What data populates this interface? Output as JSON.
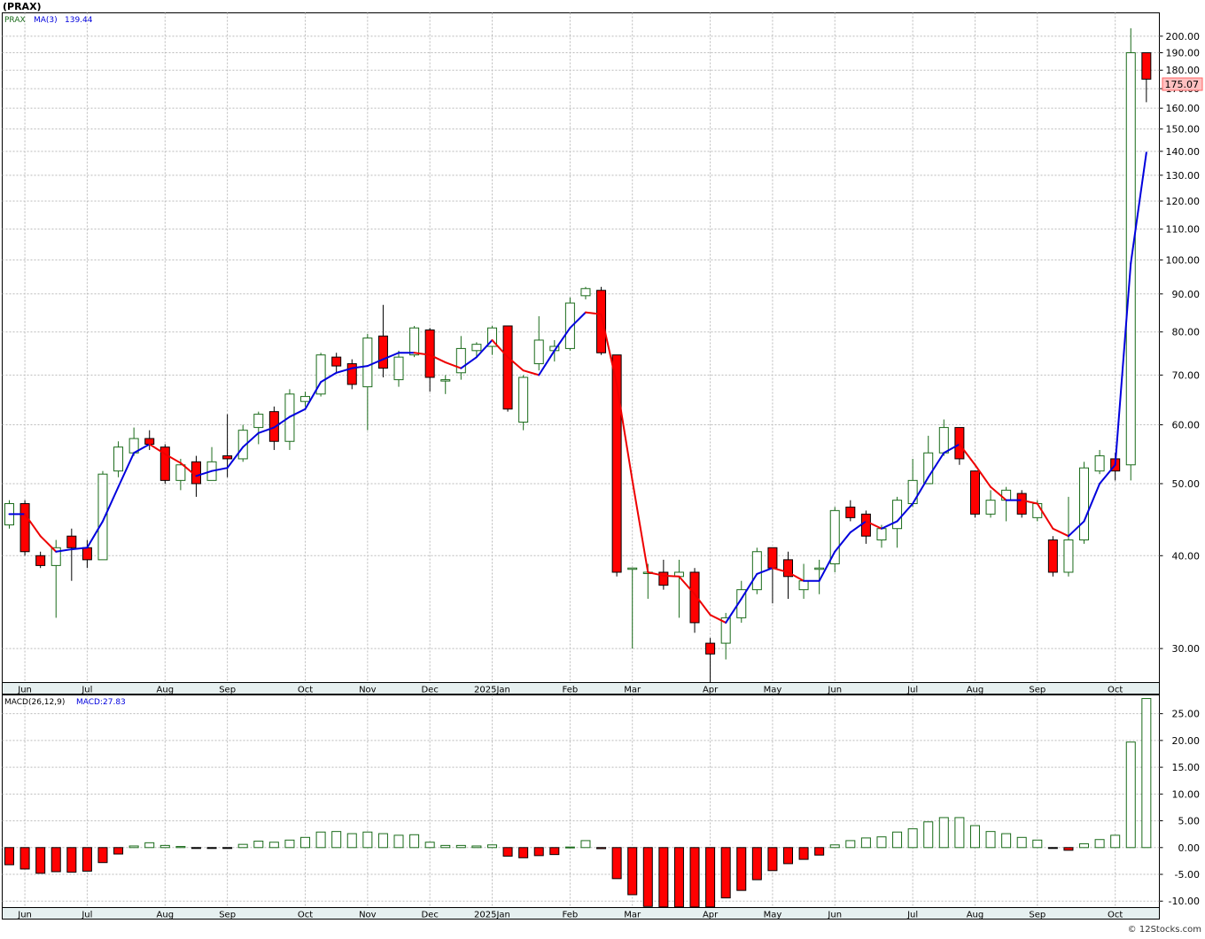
{
  "header": {
    "symbol_title": "(PRAX)",
    "legend_symbol": "PRAX",
    "legend_ma_label": "MA(3)",
    "legend_ma_value": "139.44",
    "last_price": "175.07",
    "macd_label": "MACD(26,12,9)",
    "macd_value_label": "MACD:27.83",
    "watermark": "© 12Stocks.com"
  },
  "colors": {
    "up": "#1a6b1a",
    "down": "#ff0000",
    "ma_up": "#0000dd",
    "ma_down": "#ee0000",
    "grid": "#bbbbbb",
    "axis_bg": "#e6f0f0"
  },
  "chart_data": [
    {
      "type": "candlestick",
      "title": "PRAX",
      "scale": "log",
      "ylim": [
        27,
        215
      ],
      "yticks": [
        30,
        40,
        50,
        60,
        70,
        80,
        90,
        100,
        110,
        120,
        130,
        140,
        150,
        160,
        170,
        180,
        190,
        200
      ],
      "ytick_labels": [
        "30.00",
        "40.00",
        "50.00",
        "60.00",
        "70.00",
        "80.00",
        "90.00",
        "100.00",
        "110.00",
        "120.00",
        "130.00",
        "140.00",
        "150.00",
        "160.00",
        "170.00",
        "180.00",
        "190.00",
        "200.00"
      ],
      "month_labels": [
        {
          "label": "Jun",
          "week": 1
        },
        {
          "label": "Jul",
          "week": 5
        },
        {
          "label": "Aug",
          "week": 10
        },
        {
          "label": "Sep",
          "week": 14
        },
        {
          "label": "Oct",
          "week": 19
        },
        {
          "label": "Nov",
          "week": 23
        },
        {
          "label": "Dec",
          "week": 27
        },
        {
          "label": "2025Jan",
          "week": 31
        },
        {
          "label": "Feb",
          "week": 36
        },
        {
          "label": "Mar",
          "week": 40
        },
        {
          "label": "Apr",
          "week": 45
        },
        {
          "label": "May",
          "week": 49
        },
        {
          "label": "Jun",
          "week": 53
        },
        {
          "label": "Jul",
          "week": 58
        },
        {
          "label": "Aug",
          "week": 62
        },
        {
          "label": "Sep",
          "week": 66
        },
        {
          "label": "Oct",
          "week": 71
        }
      ],
      "candles": [
        {
          "o": 44.0,
          "h": 47.5,
          "l": 43.5,
          "c": 47.0
        },
        {
          "o": 47.0,
          "h": 47.5,
          "l": 40.0,
          "c": 40.5
        },
        {
          "o": 40.0,
          "h": 40.5,
          "l": 38.5,
          "c": 38.8
        },
        {
          "o": 38.8,
          "h": 42.0,
          "l": 33.0,
          "c": 41.0
        },
        {
          "o": 42.5,
          "h": 43.5,
          "l": 37.0,
          "c": 41.0
        },
        {
          "o": 41.0,
          "h": 42.0,
          "l": 38.5,
          "c": 39.5
        },
        {
          "o": 39.5,
          "h": 52.0,
          "l": 39.5,
          "c": 51.5
        },
        {
          "o": 52.0,
          "h": 57.0,
          "l": 51.0,
          "c": 56.0
        },
        {
          "o": 55.0,
          "h": 59.5,
          "l": 54.5,
          "c": 57.5
        },
        {
          "o": 57.5,
          "h": 59.0,
          "l": 55.5,
          "c": 56.5
        },
        {
          "o": 56.0,
          "h": 56.5,
          "l": 50.0,
          "c": 50.5
        },
        {
          "o": 50.5,
          "h": 54.0,
          "l": 49.0,
          "c": 53.0
        },
        {
          "o": 53.5,
          "h": 54.5,
          "l": 48.0,
          "c": 50.0
        },
        {
          "o": 50.5,
          "h": 56.0,
          "l": 50.5,
          "c": 53.5
        },
        {
          "o": 54.5,
          "h": 62.0,
          "l": 51.0,
          "c": 54.0
        },
        {
          "o": 54.0,
          "h": 60.0,
          "l": 53.5,
          "c": 59.0
        },
        {
          "o": 59.5,
          "h": 62.5,
          "l": 56.5,
          "c": 62.0
        },
        {
          "o": 62.5,
          "h": 63.5,
          "l": 55.5,
          "c": 57.0
        },
        {
          "o": 57.0,
          "h": 67.0,
          "l": 55.5,
          "c": 66.0
        },
        {
          "o": 64.5,
          "h": 66.5,
          "l": 63.5,
          "c": 65.5
        },
        {
          "o": 66.0,
          "h": 75.0,
          "l": 65.5,
          "c": 74.5
        },
        {
          "o": 74.0,
          "h": 75.0,
          "l": 70.5,
          "c": 72.0
        },
        {
          "o": 72.5,
          "h": 73.5,
          "l": 67.0,
          "c": 68.0
        },
        {
          "o": 67.5,
          "h": 79.5,
          "l": 59.0,
          "c": 78.5
        },
        {
          "o": 79.0,
          "h": 87.0,
          "l": 69.5,
          "c": 71.5
        },
        {
          "o": 69.0,
          "h": 75.5,
          "l": 67.5,
          "c": 74.0
        },
        {
          "o": 74.5,
          "h": 81.5,
          "l": 74.0,
          "c": 81.0
        },
        {
          "o": 80.5,
          "h": 81.0,
          "l": 66.5,
          "c": 69.5
        },
        {
          "o": 69.0,
          "h": 70.0,
          "l": 66.0,
          "c": 69.0
        },
        {
          "o": 70.5,
          "h": 79.0,
          "l": 69.0,
          "c": 76.0
        },
        {
          "o": 75.5,
          "h": 77.5,
          "l": 74.0,
          "c": 77.0
        },
        {
          "o": 76.5,
          "h": 81.5,
          "l": 74.5,
          "c": 81.0
        },
        {
          "o": 81.5,
          "h": 81.5,
          "l": 62.5,
          "c": 63.0
        },
        {
          "o": 60.5,
          "h": 70.0,
          "l": 59.0,
          "c": 69.5
        },
        {
          "o": 72.5,
          "h": 84.0,
          "l": 71.0,
          "c": 78.0
        },
        {
          "o": 75.5,
          "h": 78.0,
          "l": 73.0,
          "c": 76.5
        },
        {
          "o": 76.0,
          "h": 89.0,
          "l": 75.5,
          "c": 87.5
        },
        {
          "o": 89.5,
          "h": 92.0,
          "l": 88.5,
          "c": 91.5
        },
        {
          "o": 91.0,
          "h": 92.0,
          "l": 74.5,
          "c": 75.0
        },
        {
          "o": 74.5,
          "h": 74.5,
          "l": 37.5,
          "c": 38.0
        },
        {
          "o": 38.5,
          "h": 38.5,
          "l": 30.0,
          "c": 38.5
        },
        {
          "o": 38.0,
          "h": 39.0,
          "l": 35.0,
          "c": 38.0
        },
        {
          "o": 38.0,
          "h": 39.5,
          "l": 36.0,
          "c": 36.5
        },
        {
          "o": 37.5,
          "h": 39.5,
          "l": 33.0,
          "c": 38.0
        },
        {
          "o": 38.0,
          "h": 38.5,
          "l": 31.5,
          "c": 32.5
        },
        {
          "o": 30.5,
          "h": 31.0,
          "l": 27.0,
          "c": 29.5
        },
        {
          "o": 30.5,
          "h": 33.5,
          "l": 29.0,
          "c": 33.0
        },
        {
          "o": 33.0,
          "h": 37.0,
          "l": 32.5,
          "c": 36.0
        },
        {
          "o": 36.0,
          "h": 41.0,
          "l": 35.5,
          "c": 40.5
        },
        {
          "o": 41.0,
          "h": 41.0,
          "l": 34.5,
          "c": 38.5
        },
        {
          "o": 39.5,
          "h": 40.5,
          "l": 35.0,
          "c": 37.5
        },
        {
          "o": 36.0,
          "h": 39.0,
          "l": 35.0,
          "c": 37.0
        },
        {
          "o": 38.5,
          "h": 39.5,
          "l": 35.5,
          "c": 38.5
        },
        {
          "o": 39.0,
          "h": 46.5,
          "l": 38.0,
          "c": 46.0
        },
        {
          "o": 46.5,
          "h": 47.5,
          "l": 44.5,
          "c": 45.0
        },
        {
          "o": 45.5,
          "h": 46.0,
          "l": 41.5,
          "c": 42.5
        },
        {
          "o": 42.0,
          "h": 44.0,
          "l": 41.0,
          "c": 43.5
        },
        {
          "o": 43.5,
          "h": 48.0,
          "l": 41.0,
          "c": 47.5
        },
        {
          "o": 47.0,
          "h": 54.0,
          "l": 46.5,
          "c": 50.5
        },
        {
          "o": 50.0,
          "h": 58.0,
          "l": 50.0,
          "c": 55.0
        },
        {
          "o": 55.0,
          "h": 61.0,
          "l": 54.5,
          "c": 59.5
        },
        {
          "o": 59.5,
          "h": 59.5,
          "l": 53.0,
          "c": 54.0
        },
        {
          "o": 52.0,
          "h": 52.0,
          "l": 45.0,
          "c": 45.5
        },
        {
          "o": 45.5,
          "h": 49.0,
          "l": 45.0,
          "c": 47.5
        },
        {
          "o": 47.5,
          "h": 49.5,
          "l": 44.5,
          "c": 49.0
        },
        {
          "o": 48.5,
          "h": 49.0,
          "l": 45.0,
          "c": 45.5
        },
        {
          "o": 45.0,
          "h": 47.5,
          "l": 44.5,
          "c": 47.0
        },
        {
          "o": 42.0,
          "h": 42.5,
          "l": 37.5,
          "c": 38.0
        },
        {
          "o": 38.0,
          "h": 48.0,
          "l": 37.5,
          "c": 42.0
        },
        {
          "o": 42.0,
          "h": 53.5,
          "l": 41.5,
          "c": 52.5
        },
        {
          "o": 52.0,
          "h": 55.5,
          "l": 51.5,
          "c": 54.5
        },
        {
          "o": 54.0,
          "h": 55.0,
          "l": 50.5,
          "c": 52.0
        },
        {
          "o": 53.0,
          "h": 205.0,
          "l": 50.5,
          "c": 190.0
        },
        {
          "o": 190.0,
          "h": 190.0,
          "l": 163.0,
          "c": 175.07
        }
      ],
      "ma3": [
        45.5,
        45.5,
        42.5,
        40.5,
        40.8,
        41.0,
        44.5,
        49.5,
        55.0,
        56.5,
        54.8,
        53.3,
        51.2,
        52.0,
        52.5,
        56.0,
        58.5,
        59.5,
        61.5,
        63.0,
        68.5,
        70.5,
        71.5,
        72.0,
        73.5,
        75.0,
        75.0,
        74.5,
        72.8,
        71.5,
        74.0,
        78.0,
        74.0,
        71.0,
        70.0,
        75.5,
        81.0,
        85.0,
        84.5,
        68.0,
        50.5,
        38.0,
        37.6,
        37.5,
        35.5,
        33.3,
        32.5,
        35.0,
        37.8,
        38.5,
        38.0,
        37.0,
        37.0,
        40.5,
        43.0,
        44.5,
        43.5,
        44.5,
        47.0,
        51.0,
        55.0,
        56.5,
        53.0,
        49.5,
        47.5,
        47.5,
        47.0,
        43.5,
        42.5,
        44.5,
        50.0,
        53.0,
        99.0,
        139.44
      ]
    },
    {
      "type": "bar",
      "title": "MACD(26,12,9)",
      "ylim": [
        -11.2,
        28.5
      ],
      "yticks": [
        -10,
        -5,
        0,
        5,
        10,
        15,
        20,
        25
      ],
      "ytick_labels": [
        "-10.00",
        "-5.00",
        "0.00",
        "5.00",
        "10.00",
        "15.00",
        "20.00",
        "25.00"
      ],
      "values": [
        -3.2,
        -4.0,
        -4.8,
        -4.5,
        -4.6,
        -4.4,
        -2.8,
        -1.2,
        0.3,
        0.9,
        0.4,
        0.2,
        -0.1,
        -0.1,
        -0.1,
        0.6,
        1.2,
        1.0,
        1.4,
        1.9,
        2.9,
        3.0,
        2.6,
        2.9,
        2.6,
        2.3,
        2.4,
        1.0,
        0.4,
        0.4,
        0.3,
        0.5,
        -1.6,
        -1.9,
        -1.5,
        -1.3,
        0.1,
        1.3,
        -0.2,
        -5.8,
        -8.8,
        -11.0,
        -11.1,
        -11.1,
        -11.1,
        -11.1,
        -9.4,
        -8.0,
        -6.0,
        -4.3,
        -3.0,
        -2.2,
        -1.4,
        0.5,
        1.3,
        1.8,
        2.0,
        2.9,
        3.5,
        4.8,
        5.6,
        5.6,
        4.1,
        3.0,
        2.6,
        1.9,
        1.4,
        -0.1,
        -0.5,
        0.7,
        1.5,
        2.3,
        19.7,
        27.83
      ]
    }
  ]
}
